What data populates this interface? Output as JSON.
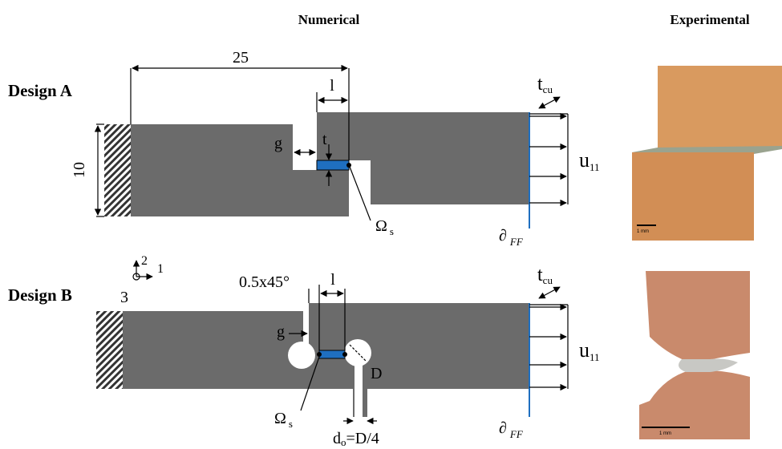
{
  "columns": {
    "numerical": "Numerical",
    "experimental": "Experimental"
  },
  "design_a": {
    "label": "Design A",
    "dim_length": "25",
    "dim_l": "l",
    "dim_height": "10",
    "gap": "g",
    "thickness": "t",
    "traction": {
      "base": "t",
      "sub": "cu"
    },
    "displacement": {
      "base": "u",
      "sub": "11"
    },
    "region": {
      "base": "Ω",
      "sub": "s"
    },
    "boundary": {
      "base": "∂",
      "sub": "FF"
    },
    "scale_bar": "1 mm"
  },
  "axes": {
    "y": "2",
    "x": "1",
    "z": "3"
  },
  "design_b": {
    "label": "Design B",
    "chamfer": "0.5x45°",
    "dim_l": "l",
    "gap": "g",
    "diameter": "D",
    "hole": {
      "base": "d",
      "sub": "o",
      "rest": "=D/4"
    },
    "traction": {
      "base": "t",
      "sub": "cu"
    },
    "displacement": {
      "base": "u",
      "sub": "11"
    },
    "region": {
      "base": "Ω",
      "sub": "s"
    },
    "boundary": {
      "base": "∂",
      "sub": "FF"
    },
    "scale_bar": "1 mm"
  }
}
